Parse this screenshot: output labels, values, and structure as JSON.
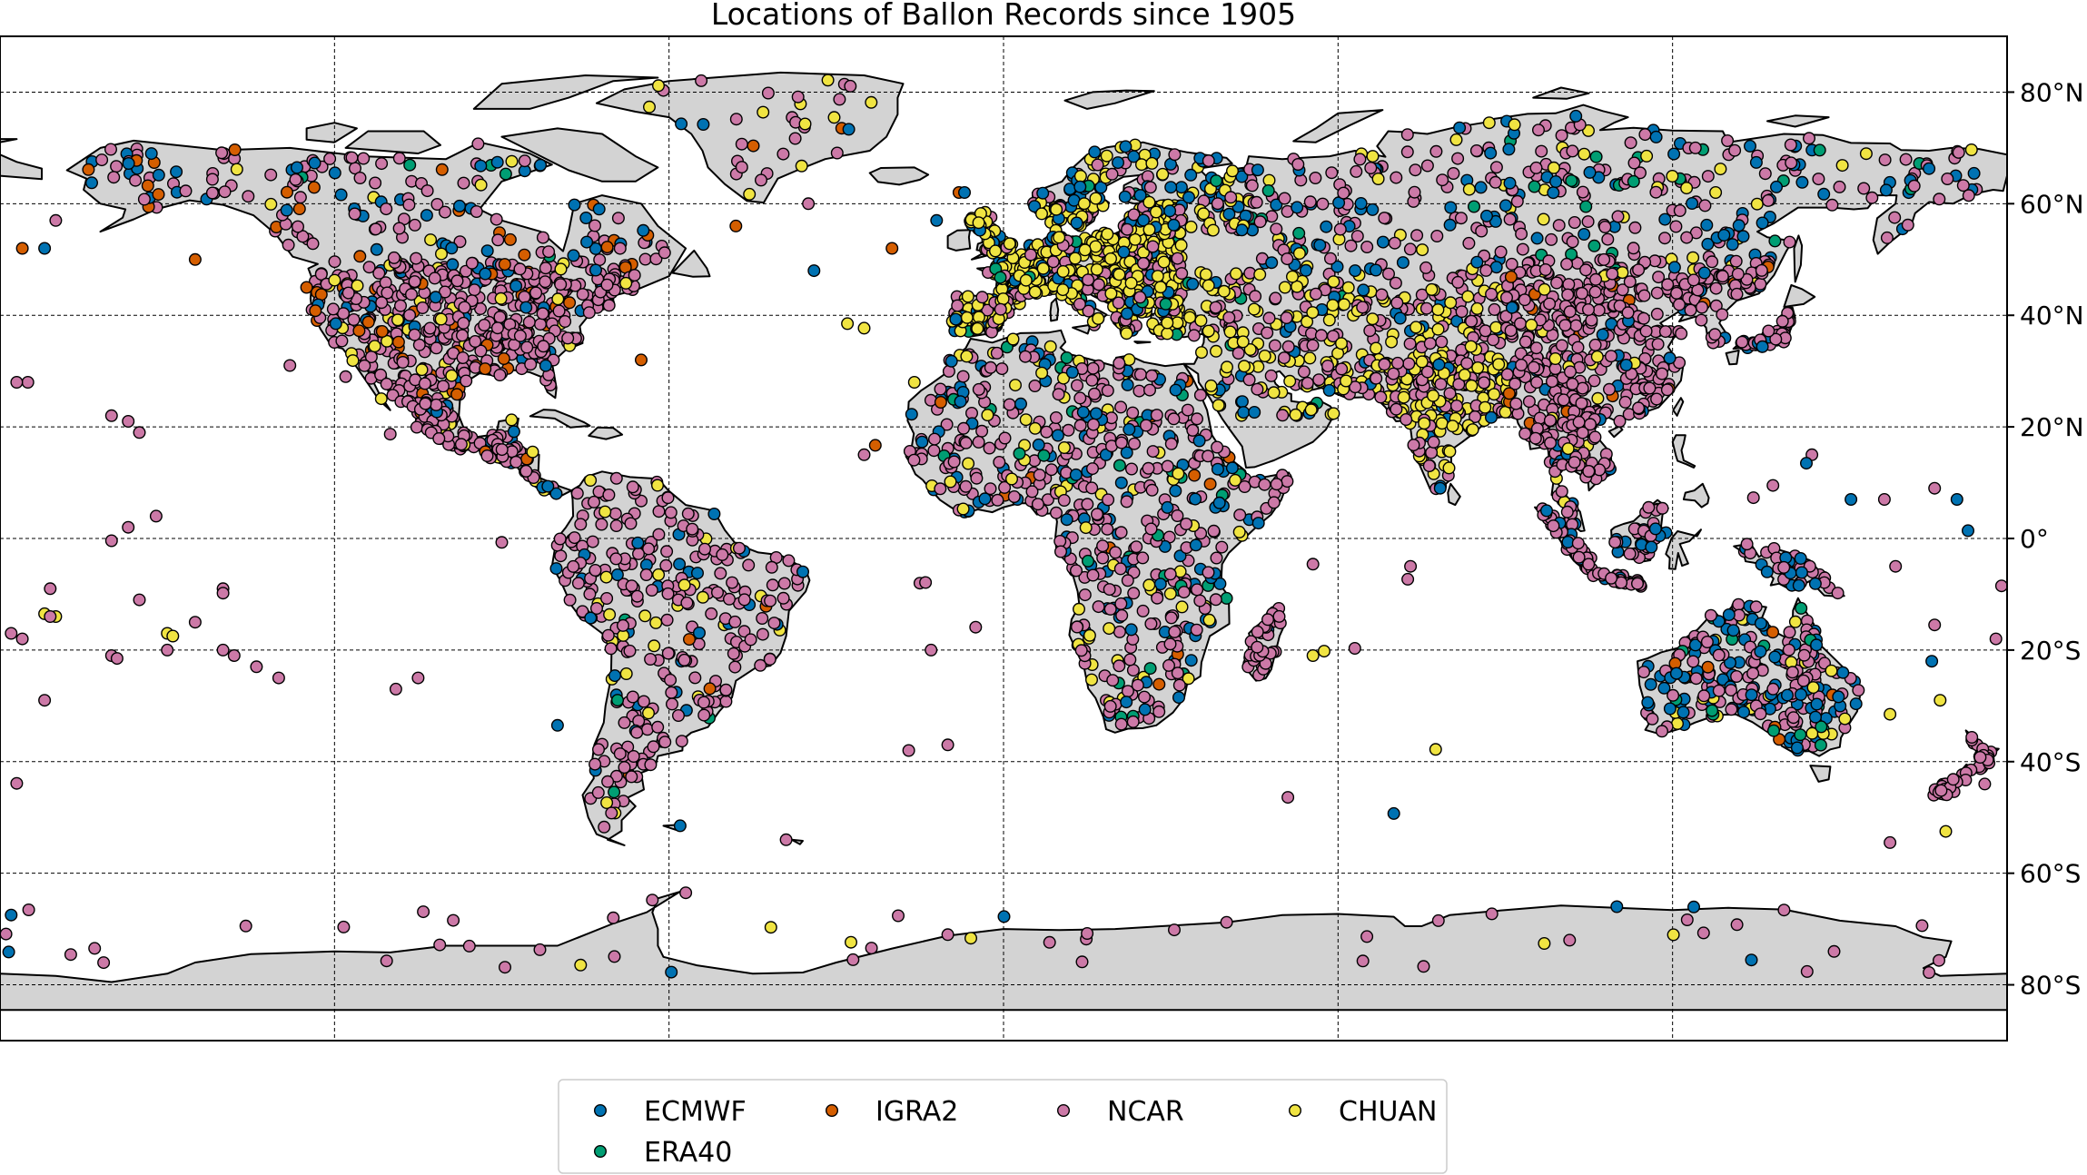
{
  "chart_data": {
    "type": "scatter",
    "subtype": "geographic-map",
    "title": "Locations of Ballon Records since 1905",
    "projection": "plate-carree",
    "lon_range": [
      -180,
      180
    ],
    "lat_range": [
      -90,
      90
    ],
    "grid": true,
    "grid_style": "dashed",
    "meridians": [
      -120,
      -60,
      0,
      60,
      120
    ],
    "parallels": [
      -80,
      -60,
      -40,
      -20,
      0,
      20,
      40,
      60,
      80
    ],
    "lat_tick_labels": [
      {
        "lat": 80,
        "label": "80°N"
      },
      {
        "lat": 60,
        "label": "60°N"
      },
      {
        "lat": 40,
        "label": "40°N"
      },
      {
        "lat": 20,
        "label": "20°N"
      },
      {
        "lat": 0,
        "label": "0°"
      },
      {
        "lat": -20,
        "label": "20°S"
      },
      {
        "lat": -40,
        "label": "40°S"
      },
      {
        "lat": -60,
        "label": "60°S"
      },
      {
        "lat": -80,
        "label": "80°S"
      }
    ],
    "land_color": "#d3d3d3",
    "coastline_color": "#000000",
    "legend_position": "bottom-center",
    "series": [
      {
        "name": "ECMWF",
        "color": "#0072b2"
      },
      {
        "name": "IGRA2",
        "color": "#d55e00"
      },
      {
        "name": "NCAR",
        "color": "#cc79a7"
      },
      {
        "name": "CHUAN",
        "color": "#f0e442"
      },
      {
        "name": "ERA40",
        "color": "#009e73"
      }
    ]
  }
}
